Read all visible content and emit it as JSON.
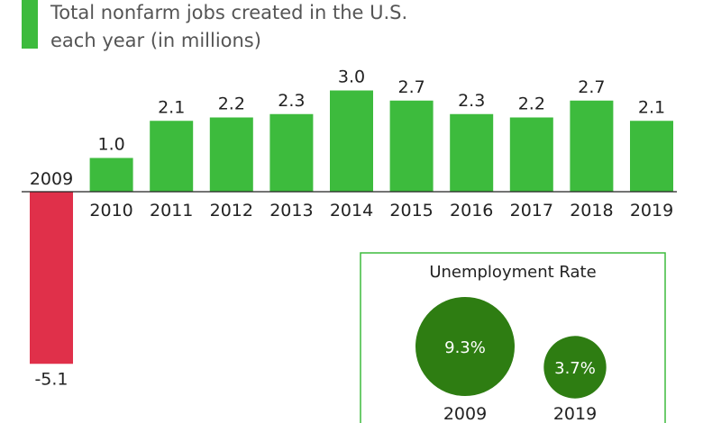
{
  "legend": {
    "line1": "Total nonfarm jobs created in the U.S.",
    "line2": "each year (in millions)",
    "color": "#3dbb3d"
  },
  "colors": {
    "positive": "#3dbb3d",
    "negative": "#e0304a",
    "inset_border": "#3dbb3d",
    "bubble": "#2e7d12"
  },
  "chart_data": [
    {
      "type": "bar",
      "categories": [
        "2009",
        "2010",
        "2011",
        "2012",
        "2013",
        "2014",
        "2015",
        "2016",
        "2017",
        "2018",
        "2019"
      ],
      "series": [
        {
          "name": "Total nonfarm jobs created in the U.S. each year (in millions)",
          "values": [
            -5.1,
            1.0,
            2.1,
            2.2,
            2.3,
            3.0,
            2.7,
            2.3,
            2.2,
            2.7,
            2.1
          ],
          "labels": [
            "-5.1",
            "1.0",
            "2.1",
            "2.2",
            "2.3",
            "3.0",
            "2.7",
            "2.3",
            "2.2",
            "2.7",
            "2.1"
          ]
        }
      ],
      "ylim": [
        -5.1,
        3.0
      ],
      "grid": false,
      "legend_position": "top-left"
    },
    {
      "type": "bubble",
      "title": "Unemployment Rate",
      "categories": [
        "2009",
        "2019"
      ],
      "values": [
        9.3,
        3.7
      ],
      "labels": [
        "9.3%",
        "3.7%"
      ]
    }
  ]
}
